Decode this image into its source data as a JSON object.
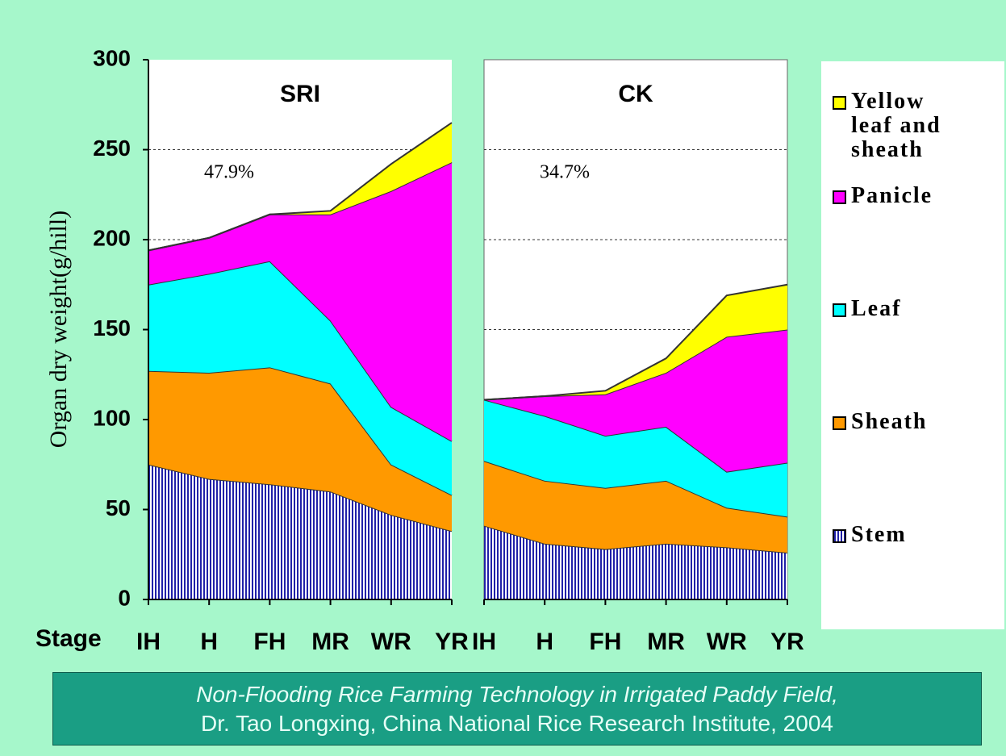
{
  "y_label": "Organ dry weight(g/hill)",
  "x_label": "Stage",
  "footer": {
    "line1": "Non-Flooding Rice Farming Technology in Irrigated Paddy Field,",
    "line2": "Dr. Tao Longxing, China National Rice Research Institute, 2004"
  },
  "chart_data": [
    {
      "type": "stacked-area",
      "title": "SRI",
      "annotation": "47.9%",
      "categories": [
        "IH",
        "H",
        "FH",
        "MR",
        "WR",
        "YR"
      ],
      "series": [
        {
          "name": "Stem",
          "color": "#2020a8",
          "values": [
            75,
            67,
            64,
            60,
            47,
            38
          ]
        },
        {
          "name": "Sheath",
          "color": "#ff9900",
          "values": [
            52,
            59,
            65,
            60,
            28,
            20
          ]
        },
        {
          "name": "Leaf",
          "color": "#00ffff",
          "values": [
            48,
            55,
            59,
            35,
            32,
            30
          ]
        },
        {
          "name": "Panicle",
          "color": "#ff00ff",
          "values": [
            19,
            20,
            26,
            59,
            120,
            155
          ]
        },
        {
          "name": "Yellow leaf and sheath",
          "color": "#ffff00",
          "values": [
            0,
            0,
            0,
            2,
            15,
            22
          ]
        }
      ],
      "ylim": [
        0,
        300
      ],
      "yticks": [
        0,
        50,
        100,
        150,
        200,
        250,
        300
      ],
      "grid": true
    },
    {
      "type": "stacked-area",
      "title": "CK",
      "annotation": "34.7%",
      "categories": [
        "IH",
        "H",
        "FH",
        "MR",
        "WR",
        "YR"
      ],
      "series": [
        {
          "name": "Stem",
          "color": "#2020a8",
          "values": [
            41,
            31,
            28,
            31,
            29,
            26
          ]
        },
        {
          "name": "Sheath",
          "color": "#ff9900",
          "values": [
            36,
            35,
            34,
            35,
            22,
            20
          ]
        },
        {
          "name": "Leaf",
          "color": "#00ffff",
          "values": [
            34,
            36,
            29,
            30,
            20,
            30
          ]
        },
        {
          "name": "Panicle",
          "color": "#ff00ff",
          "values": [
            0,
            11,
            23,
            30,
            75,
            74
          ]
        },
        {
          "name": "Yellow leaf and sheath",
          "color": "#ffff00",
          "values": [
            0,
            0,
            2,
            8,
            23,
            25
          ]
        }
      ],
      "ylim": [
        0,
        300
      ],
      "yticks": [
        0,
        50,
        100,
        150,
        200,
        250,
        300
      ],
      "grid": true
    }
  ]
}
